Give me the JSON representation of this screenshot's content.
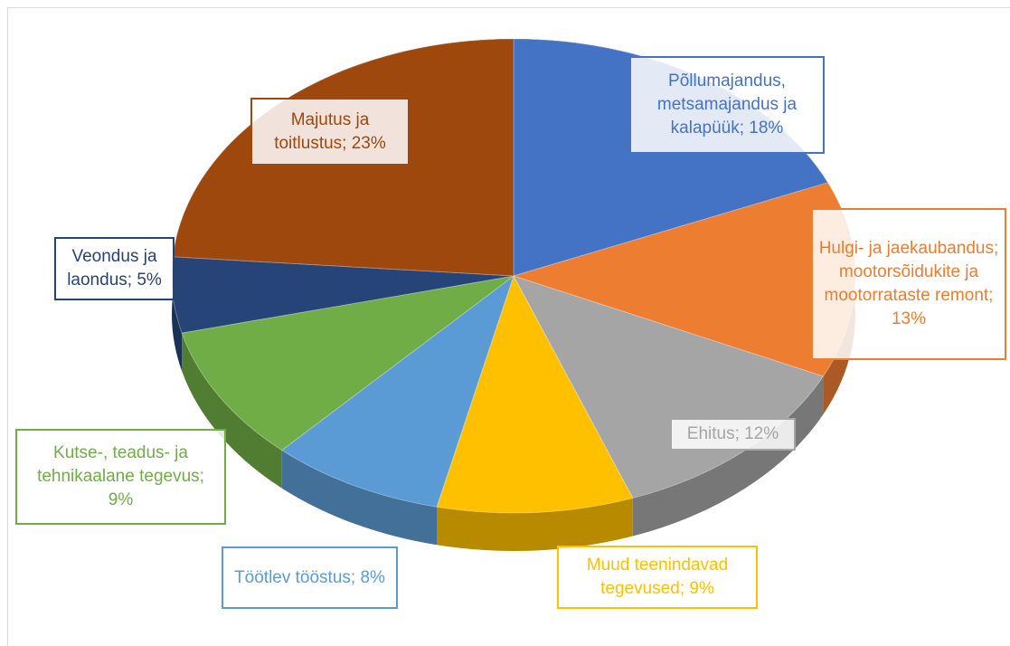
{
  "chart_data": {
    "type": "pie",
    "values": [
      18,
      13,
      12,
      9,
      8,
      9,
      5,
      23
    ],
    "value_labels": [
      "Põllumajandus, metsamajandus ja kalapüük; 18%",
      "Hulgi- ja jaekaubandus; mootorsõidukite ja mootorrataste remont; 13%",
      "Ehitus; 12%",
      "Muud teenindavad tegevused; 9%",
      "Töötlev tööstus; 8%",
      "Kutse-, teadus- ja tehnikaalane tegevus; 9%",
      "Veondus ja laondus; 5%",
      "Majutus ja toitlustus; 23%"
    ],
    "colors": [
      "#4472c4",
      "#ed7d31",
      "#a5a5a5",
      "#ffc000",
      "#5b9bd5",
      "#70ad47",
      "#264478",
      "#9e480e"
    ]
  }
}
